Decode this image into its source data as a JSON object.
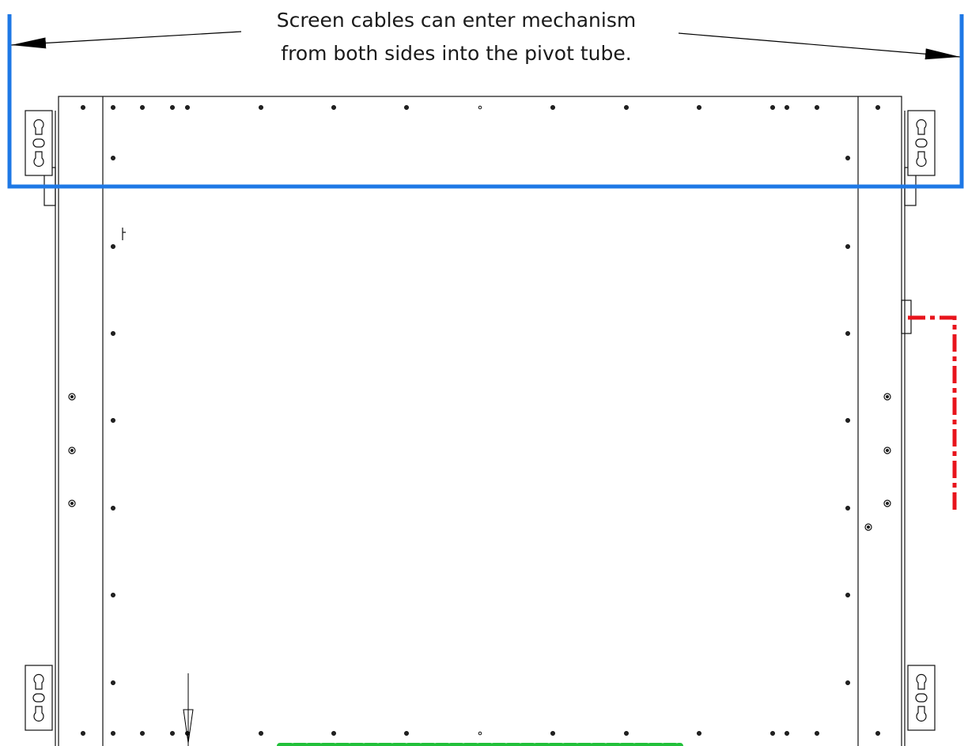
{
  "annotation": {
    "lines": [
      "Screen cables can enter mechanism",
      "from both sides into the pivot tube."
    ]
  }
}
